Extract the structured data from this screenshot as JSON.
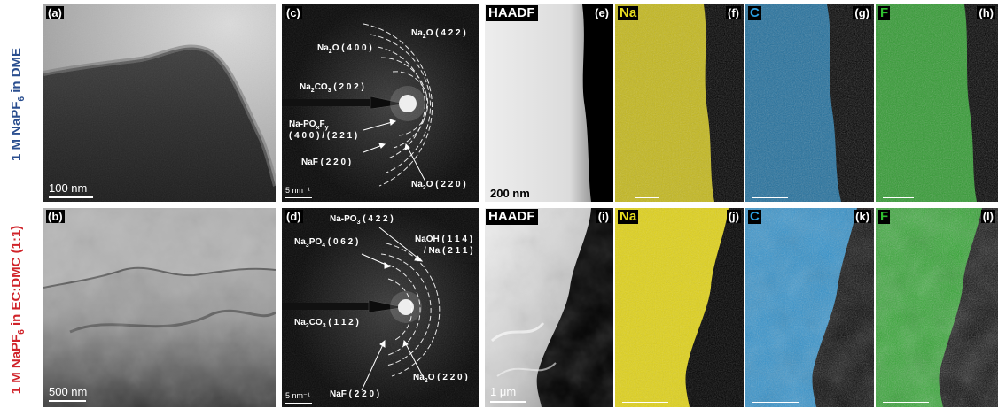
{
  "row_labels": {
    "top": "1 M NaPF6 in DME",
    "bottom": "1 M NaPF6 in EC:DMC (1:1)"
  },
  "panels": {
    "a": {
      "label": "(a)",
      "scale": "100 nm"
    },
    "b": {
      "label": "(b)",
      "scale": "500 nm"
    },
    "c": {
      "label": "(c)",
      "scale": "5 nm⁻¹"
    },
    "d": {
      "label": "(d)",
      "scale": "5 nm⁻¹"
    },
    "e": {
      "label": "(e)",
      "tag": "HAADF",
      "scale": "200 nm"
    },
    "f": {
      "label": "(f)",
      "element": "Na"
    },
    "g": {
      "label": "(g)",
      "element": "C"
    },
    "h": {
      "label": "(h)",
      "element": "F"
    },
    "i": {
      "label": "(i)",
      "tag": "HAADF",
      "scale": "1 μm"
    },
    "j": {
      "label": "(j)",
      "element": "Na"
    },
    "k": {
      "label": "(k)",
      "element": "C"
    },
    "l": {
      "label": "(l)",
      "element": "F"
    }
  },
  "saed_c": {
    "na2o_422": "Na2O ( 4 2 2 )",
    "na2o_400": "Na2O ( 4 0 0 )",
    "na2co3_202": "Na2CO3 ( 2 0 2 )",
    "napo_line1": "Na-POxFy",
    "napo_line2": "( 4 0 0 ) / ( 2 2 1 )",
    "naf_220": "NaF ( 2 2 0 )",
    "na2o_220": "Na2O ( 2 2 0 )"
  },
  "saed_d": {
    "napo3_422": "Na-PO3 ( 4 2 2 )",
    "na3po4_062": "Na3PO4 ( 0 6 2 )",
    "naoh_line1": "NaOH ( 1 1 4 )",
    "naoh_line2": "/ Na ( 2 1 1 )",
    "na2co3_112": "Na2CO3 ( 1 1 2 )",
    "naf_220": "NaF ( 2 2 0 )",
    "na2o_220": "Na2O ( 2 2 0 )"
  },
  "colors": {
    "top_label": "#2a4e8f",
    "bottom_label": "#d0232a",
    "na_map": "#e6dc1e",
    "c_map": "#2b9ee0",
    "f_map": "#2fbf2f"
  }
}
